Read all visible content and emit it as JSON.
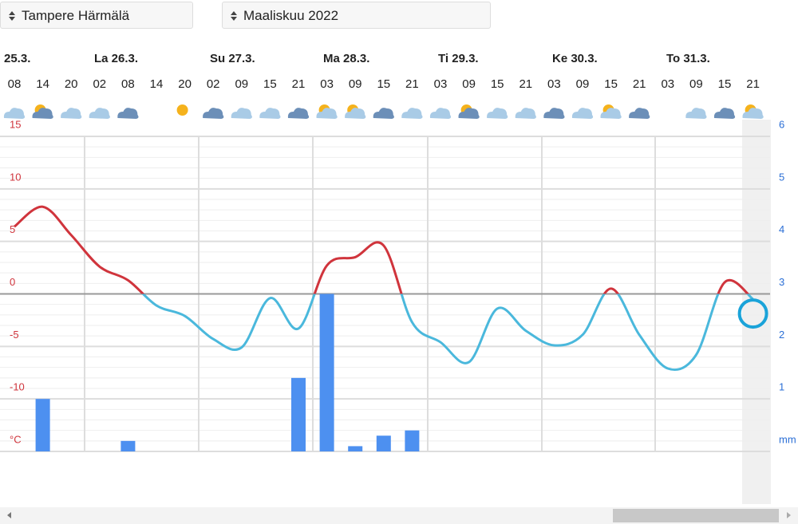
{
  "header": {
    "location": "Tampere Härmälä",
    "month": "Maaliskuu 2022"
  },
  "chart_data": {
    "type": "line",
    "days": [
      "25.3.",
      "La 26.3.",
      "Su 27.3.",
      "Ma 28.3.",
      "Ti 29.3.",
      "Ke 30.3.",
      "To 31.3."
    ],
    "categories": [
      "08",
      "14",
      "20",
      "02",
      "08",
      "14",
      "20",
      "02",
      "09",
      "15",
      "21",
      "03",
      "09",
      "15",
      "21",
      "03",
      "09",
      "15",
      "21",
      "03",
      "09",
      "15",
      "21",
      "03",
      "09",
      "15",
      "21"
    ],
    "series": [
      {
        "name": "temperature",
        "color": "#4ab8dc",
        "color_above_zero": "#d0343c",
        "values": [
          6.4,
          8.3,
          5.6,
          2.6,
          1.3,
          -1.1,
          -2.1,
          -4.3,
          -5.1,
          -0.4,
          -3.3,
          2.7,
          3.5,
          4.6,
          -2.7,
          -4.6,
          -6.5,
          -1.4,
          -3.5,
          -4.9,
          -3.9,
          0.5,
          -3.9,
          -7.1,
          -5.8,
          1.1,
          -0.5
        ]
      },
      {
        "name": "precipitation",
        "type": "bar",
        "axis": "y2",
        "color": "#4d90f0",
        "values": [
          0,
          1.0,
          0,
          0,
          0.2,
          0,
          0,
          0,
          0,
          0,
          1.4,
          3.0,
          0.1,
          0.3,
          0.4,
          0,
          0,
          0,
          0,
          0,
          0,
          0,
          0,
          0,
          0,
          0,
          0
        ]
      }
    ],
    "ylim": [
      -15,
      15
    ],
    "yticks": [
      {
        "value": -15,
        "label": "°C"
      },
      -10,
      -5,
      0,
      5,
      10,
      15
    ],
    "y2lim": [
      0,
      6
    ],
    "y2ticks": [
      {
        "value": 0,
        "label": "mm"
      },
      1,
      2,
      3,
      4,
      5,
      6
    ],
    "grid": true
  }
}
